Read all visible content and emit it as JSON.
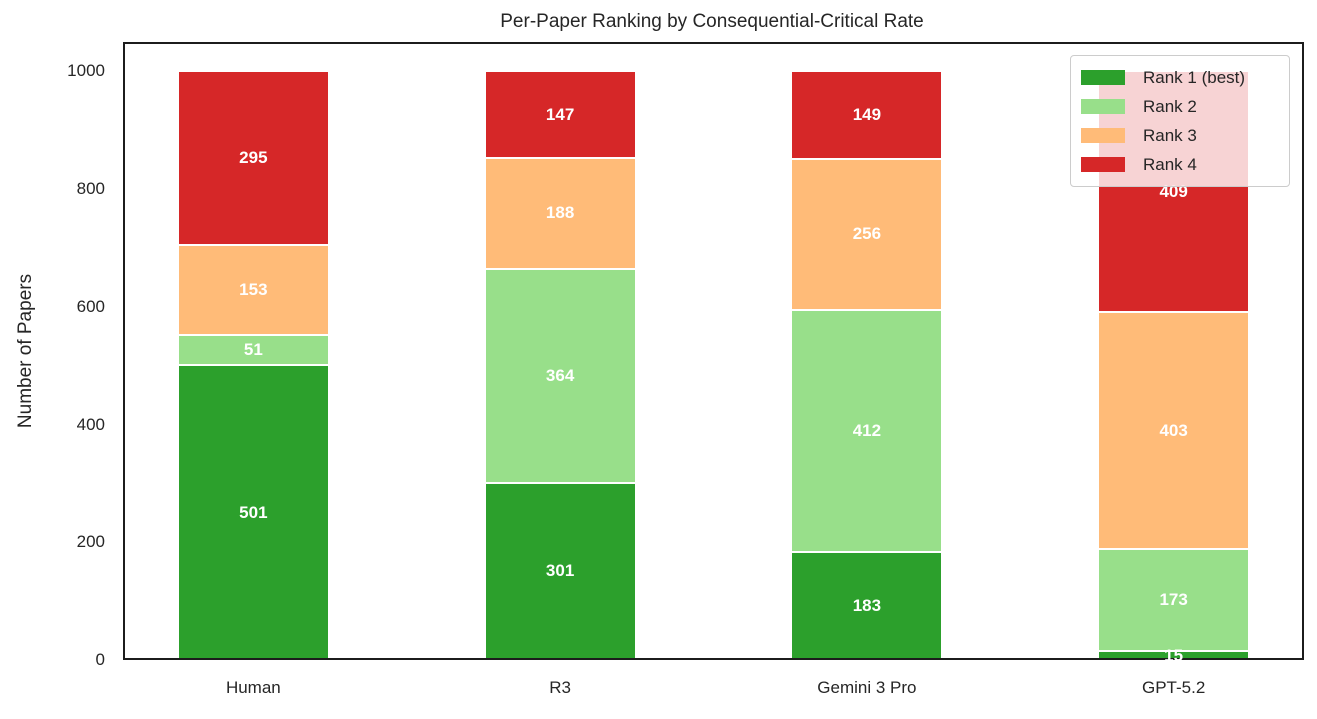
{
  "chart_data": {
    "type": "bar",
    "stacked": true,
    "title": "Per-Paper Ranking by Consequential-Critical Rate",
    "xlabel": "",
    "ylabel": "Number of Papers",
    "categories": [
      "Human",
      "R3",
      "Gemini 3 Pro",
      "GPT-5.2"
    ],
    "series": [
      {
        "name": "Rank 1 (best)",
        "color": "#2ca02c",
        "values": [
          501,
          301,
          183,
          15
        ]
      },
      {
        "name": "Rank 2",
        "color": "#98df8a",
        "values": [
          51,
          364,
          412,
          173
        ]
      },
      {
        "name": "Rank 3",
        "color": "#ffbb78",
        "values": [
          153,
          188,
          256,
          403
        ]
      },
      {
        "name": "Rank 4",
        "color": "#d62728",
        "values": [
          295,
          147,
          149,
          409
        ]
      }
    ],
    "bar_totals": [
      1000,
      1000,
      1000,
      1000
    ],
    "ylim": [
      0,
      1050
    ],
    "yticks": [
      "0",
      "200",
      "400",
      "600",
      "800",
      "1000"
    ],
    "grid": false,
    "legend_position": "upper right",
    "bar_value_label_color": "#ffffff",
    "segment_edge_color": "#ffffff",
    "axis_spine_color": "#1c1c1c",
    "text_color": "#262626",
    "background_color": "#ffffff"
  }
}
